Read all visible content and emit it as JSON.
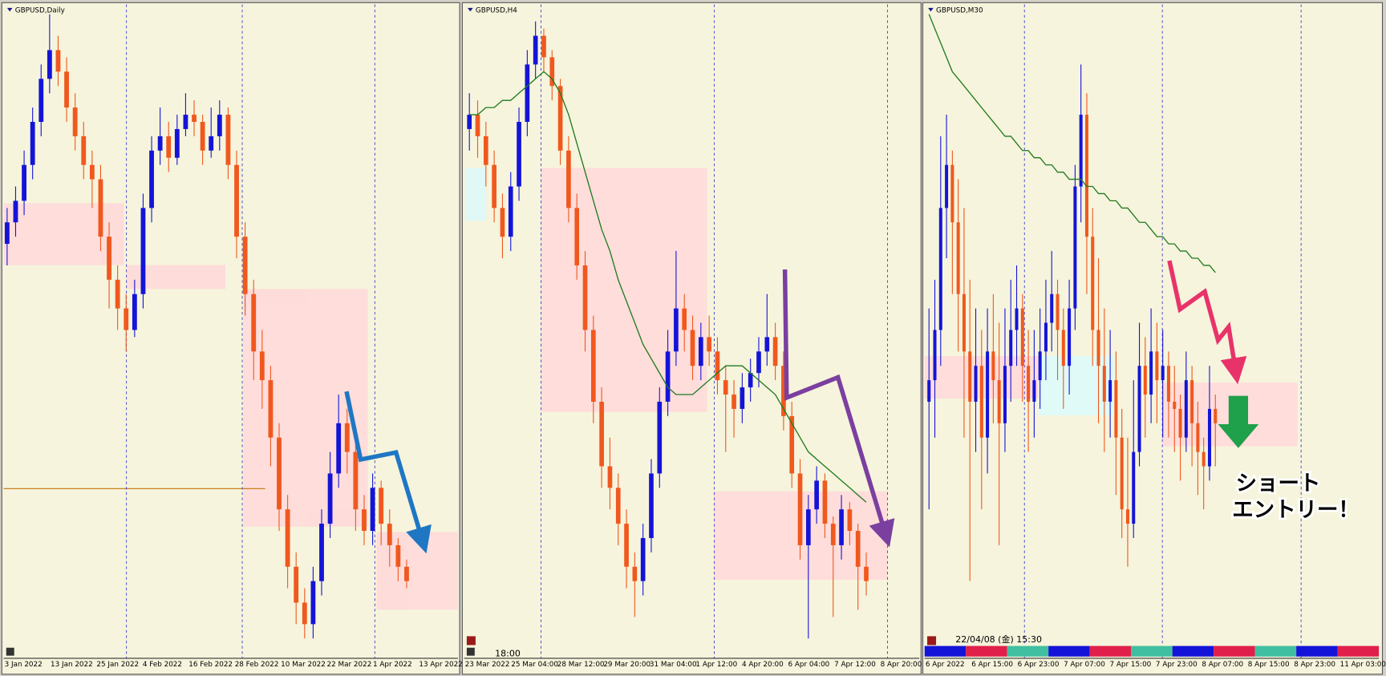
{
  "chart_data": [
    {
      "type": "candlestick",
      "title": "GBPUSD,Daily",
      "ylim": [
        0,
        100
      ],
      "bull_color": "#1414d8",
      "bear_color": "#f0581e",
      "x_labels": [
        "3 Jan 2022",
        "13 Jan 2022",
        "25 Jan 2022",
        "4 Feb 2022",
        "16 Feb 2022",
        "28 Feb 2022",
        "10 Mar 2022",
        "22 Mar 2022",
        "1 Apr 2022",
        "13 Apr 2022"
      ],
      "candles": [
        [
          67,
          72,
          64,
          70
        ],
        [
          70,
          75,
          68,
          73
        ],
        [
          73,
          80,
          71,
          78
        ],
        [
          78,
          86,
          76,
          84
        ],
        [
          84,
          92,
          82,
          90
        ],
        [
          90,
          99,
          88,
          94
        ],
        [
          94,
          96,
          89,
          91
        ],
        [
          91,
          93,
          84,
          86
        ],
        [
          86,
          88,
          80,
          82
        ],
        [
          82,
          84,
          76,
          78
        ],
        [
          78,
          80,
          72,
          76
        ],
        [
          76,
          78,
          66,
          68
        ],
        [
          68,
          70,
          58,
          62
        ],
        [
          62,
          64,
          55,
          58
        ],
        [
          58,
          60,
          52,
          55
        ],
        [
          55,
          62,
          54,
          60
        ],
        [
          60,
          74,
          58,
          72
        ],
        [
          72,
          82,
          70,
          80
        ],
        [
          80,
          86,
          78,
          82
        ],
        [
          82,
          84,
          77,
          79
        ],
        [
          79,
          85,
          78,
          83
        ],
        [
          83,
          88,
          82,
          85
        ],
        [
          85,
          87,
          82,
          84
        ],
        [
          84,
          85,
          78,
          80
        ],
        [
          80,
          86,
          79,
          82
        ],
        [
          82,
          87,
          80,
          85
        ],
        [
          85,
          86,
          76,
          78
        ],
        [
          78,
          80,
          65,
          68
        ],
        [
          68,
          70,
          57,
          60
        ],
        [
          60,
          62,
          48,
          52
        ],
        [
          52,
          55,
          44,
          48
        ],
        [
          48,
          50,
          36,
          40
        ],
        [
          40,
          42,
          27,
          30
        ],
        [
          30,
          32,
          19,
          22
        ],
        [
          22,
          24,
          14,
          17
        ],
        [
          17,
          19,
          12,
          14
        ],
        [
          14,
          22,
          12,
          20
        ],
        [
          20,
          30,
          18,
          28
        ],
        [
          28,
          38,
          26,
          35
        ],
        [
          35,
          46,
          33,
          42
        ],
        [
          42,
          44,
          35,
          38
        ],
        [
          38,
          40,
          27,
          30
        ],
        [
          30,
          32,
          25,
          27
        ],
        [
          27,
          35,
          25,
          33
        ],
        [
          33,
          34,
          25,
          28
        ],
        [
          28,
          30,
          22,
          25
        ],
        [
          25,
          26,
          20,
          22
        ],
        [
          22,
          23,
          19,
          20
        ]
      ]
    },
    {
      "type": "candlestick",
      "title": "GBPUSD,H4",
      "ylim": [
        0,
        100
      ],
      "bull_color": "#1414d8",
      "bear_color": "#f0581e",
      "status_text": "18:00",
      "x_labels": [
        "23 Mar 2022",
        "25 Mar 04:00",
        "28 Mar 12:00",
        "29 Mar 20:00",
        "31 Mar 04:00",
        "1 Apr 12:00",
        "4 Apr 20:00",
        "6 Apr 04:00",
        "7 Apr 12:00",
        "8 Apr 20:00"
      ],
      "candles": [
        [
          83,
          88,
          80,
          85
        ],
        [
          85,
          87,
          79,
          82
        ],
        [
          82,
          84,
          75,
          78
        ],
        [
          78,
          80,
          70,
          72
        ],
        [
          72,
          74,
          65,
          68
        ],
        [
          68,
          77,
          66,
          75
        ],
        [
          75,
          86,
          73,
          84
        ],
        [
          84,
          94,
          82,
          92
        ],
        [
          92,
          98,
          90,
          96
        ],
        [
          96,
          97,
          91,
          93
        ],
        [
          93,
          94,
          87,
          89
        ],
        [
          89,
          90,
          78,
          80
        ],
        [
          80,
          82,
          70,
          72
        ],
        [
          72,
          74,
          62,
          64
        ],
        [
          64,
          66,
          52,
          55
        ],
        [
          55,
          57,
          42,
          45
        ],
        [
          45,
          47,
          33,
          36
        ],
        [
          36,
          40,
          30,
          33
        ],
        [
          33,
          35,
          25,
          28
        ],
        [
          28,
          30,
          19,
          22
        ],
        [
          22,
          24,
          15,
          20
        ],
        [
          20,
          28,
          18,
          26
        ],
        [
          26,
          37,
          24,
          35
        ],
        [
          35,
          47,
          33,
          45
        ],
        [
          45,
          55,
          43,
          52
        ],
        [
          52,
          66,
          50,
          58
        ],
        [
          58,
          60,
          52,
          55
        ],
        [
          55,
          57,
          48,
          50
        ],
        [
          50,
          56,
          48,
          54
        ],
        [
          54,
          57,
          50,
          52
        ],
        [
          52,
          54,
          46,
          48
        ],
        [
          48,
          50,
          38,
          46
        ],
        [
          46,
          48,
          40,
          44
        ],
        [
          44,
          49,
          42,
          47
        ],
        [
          47,
          51,
          45,
          49
        ],
        [
          49,
          54,
          47,
          52
        ],
        [
          52,
          60,
          50,
          54
        ],
        [
          54,
          56,
          48,
          50
        ],
        [
          50,
          52,
          41,
          43
        ],
        [
          43,
          45,
          33,
          35
        ],
        [
          35,
          37,
          23,
          25
        ],
        [
          25,
          32,
          12,
          30
        ],
        [
          30,
          36,
          28,
          34
        ],
        [
          34,
          35,
          26,
          28
        ],
        [
          28,
          29,
          15,
          25
        ],
        [
          25,
          32,
          23,
          30
        ],
        [
          30,
          31,
          25,
          27
        ],
        [
          27,
          28,
          16,
          22
        ],
        [
          22,
          24,
          18,
          20
        ]
      ],
      "ma": {
        "color": "#1f7a1f",
        "values": [
          85,
          85,
          86,
          86,
          87,
          87,
          88,
          89,
          90,
          91,
          90,
          88,
          85,
          81,
          77,
          73,
          69,
          66,
          62,
          59,
          56,
          53,
          51,
          49,
          47,
          46,
          46,
          46,
          47,
          48,
          49,
          50,
          50,
          50,
          49,
          48,
          47,
          46,
          44,
          42,
          40,
          38,
          37,
          36,
          35,
          34,
          33,
          32,
          31
        ]
      }
    },
    {
      "type": "candlestick",
      "title": "GBPUSD,M30",
      "ylim": [
        0,
        100
      ],
      "bull_color": "#1414d8",
      "bear_color": "#f0581e",
      "status_text": "22/04/08 (金) 15:30",
      "x_labels": [
        "6 Apr 2022",
        "6 Apr 15:00",
        "6 Apr 23:00",
        "7 Apr 07:00",
        "7 Apr 15:00",
        "7 Apr 23:00",
        "8 Apr 07:00",
        "8 Apr 15:00",
        "8 Apr 23:00",
        "11 Apr 03:00"
      ],
      "candles": [
        [
          45,
          58,
          30,
          48
        ],
        [
          48,
          62,
          40,
          55
        ],
        [
          55,
          82,
          50,
          72
        ],
        [
          72,
          85,
          65,
          78
        ],
        [
          78,
          80,
          60,
          70
        ],
        [
          70,
          76,
          52,
          60
        ],
        [
          60,
          72,
          40,
          52
        ],
        [
          52,
          62,
          20,
          45
        ],
        [
          45,
          58,
          38,
          50
        ],
        [
          50,
          55,
          30,
          40
        ],
        [
          40,
          58,
          35,
          52
        ],
        [
          52,
          60,
          42,
          48
        ],
        [
          48,
          56,
          25,
          42
        ],
        [
          42,
          58,
          38,
          50
        ],
        [
          50,
          62,
          45,
          55
        ],
        [
          55,
          64,
          50,
          58
        ],
        [
          58,
          60,
          45,
          50
        ],
        [
          50,
          55,
          38,
          45
        ],
        [
          45,
          55,
          40,
          48
        ],
        [
          48,
          58,
          44,
          52
        ],
        [
          52,
          62,
          48,
          56
        ],
        [
          56,
          66,
          52,
          60
        ],
        [
          60,
          62,
          48,
          55
        ],
        [
          55,
          58,
          44,
          50
        ],
        [
          50,
          62,
          46,
          58
        ],
        [
          58,
          78,
          55,
          75
        ],
        [
          75,
          92,
          70,
          85
        ],
        [
          85,
          88,
          60,
          68
        ],
        [
          68,
          72,
          50,
          55
        ],
        [
          55,
          65,
          42,
          50
        ],
        [
          50,
          58,
          38,
          45
        ],
        [
          45,
          55,
          40,
          48
        ],
        [
          48,
          52,
          32,
          40
        ],
        [
          40,
          44,
          26,
          30
        ],
        [
          30,
          40,
          22,
          28
        ],
        [
          28,
          48,
          26,
          38
        ],
        [
          38,
          56,
          36,
          50
        ],
        [
          50,
          54,
          40,
          46
        ],
        [
          46,
          58,
          42,
          52
        ],
        [
          52,
          56,
          42,
          48
        ],
        [
          48,
          55,
          40,
          50
        ],
        [
          50,
          52,
          40,
          45
        ],
        [
          45,
          50,
          38,
          44
        ],
        [
          44,
          46,
          34,
          40
        ],
        [
          40,
          52,
          38,
          48
        ],
        [
          48,
          50,
          36,
          42
        ],
        [
          42,
          45,
          32,
          38
        ],
        [
          38,
          40,
          30,
          36
        ],
        [
          36,
          50,
          34,
          44
        ],
        [
          44,
          46,
          36,
          42
        ]
      ],
      "ma": {
        "color": "#1f7a1f",
        "values": [
          99,
          97,
          95,
          93,
          91,
          90,
          89,
          88,
          87,
          86,
          85,
          84,
          83,
          82,
          82,
          81,
          80,
          80,
          79,
          79,
          78,
          78,
          77,
          77,
          76,
          76,
          76,
          75,
          75,
          74,
          74,
          73,
          73,
          72,
          72,
          71,
          70,
          70,
          69,
          68,
          68,
          67,
          67,
          66,
          66,
          65,
          65,
          64,
          64,
          63
        ]
      }
    }
  ],
  "annotation": {
    "lines": [
      "ショート",
      "エントリー！"
    ],
    "color": "#e8336a"
  }
}
